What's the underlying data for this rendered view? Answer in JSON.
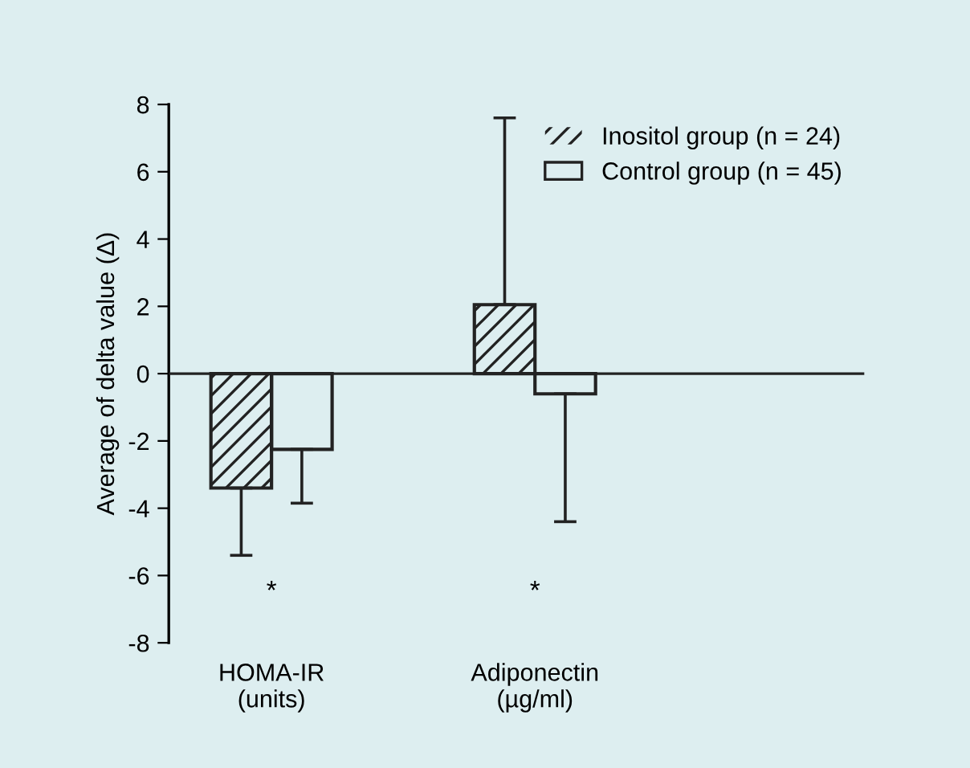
{
  "chart_data": {
    "type": "bar",
    "ylabel": "Average of delta value (Δ)",
    "categories": [
      "HOMA-IR\n(units)",
      "Adiponectin\n(µg/ml)"
    ],
    "series": [
      {
        "name": "Inositol group (n = 24)",
        "color": "#222222",
        "values": [
          -3.4,
          2.05
        ],
        "errors": [
          [
            -5.4,
            -3.4
          ],
          [
            2.05,
            7.6
          ]
        ]
      },
      {
        "name": "Control group (n = 45)",
        "color": "#222222",
        "values": [
          -2.25,
          -0.6
        ],
        "errors": [
          [
            -3.85,
            -2.25
          ],
          [
            -4.4,
            -0.6
          ]
        ]
      }
    ],
    "ylim": [
      -8,
      8
    ],
    "yticks": [
      -8,
      -6,
      -4,
      -2,
      0,
      2,
      4,
      6,
      8
    ],
    "annotations": [
      "*",
      "*"
    ],
    "ref_lines": [
      {
        "axis": "y",
        "value": 0,
        "color": "#222222"
      }
    ],
    "legend": "top right"
  }
}
